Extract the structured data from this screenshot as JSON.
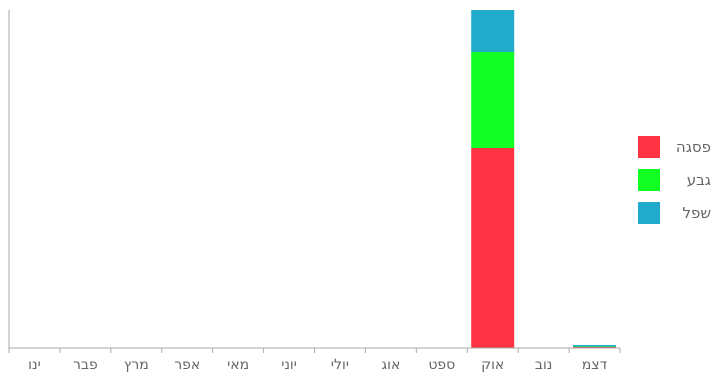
{
  "chart_data": {
    "type": "bar",
    "stacked": true,
    "categories": [
      "ינו",
      "פבר",
      "מרץ",
      "אפר",
      "מאי",
      "יוני",
      "יולי",
      "אוג",
      "ספט",
      "אוק",
      "נוב",
      "דצמ"
    ],
    "series": [
      {
        "name": "פסגה",
        "color": "#ff3344",
        "values": [
          0,
          0,
          0,
          0,
          0,
          0,
          0,
          0,
          0,
          200,
          0,
          1
        ]
      },
      {
        "name": "גבע",
        "color": "#11ff22",
        "values": [
          0,
          0,
          0,
          0,
          0,
          0,
          0,
          0,
          0,
          96,
          0,
          0.5
        ]
      },
      {
        "name": "שפל",
        "color": "#22aacc",
        "values": [
          0,
          0,
          0,
          0,
          0,
          0,
          0,
          0,
          0,
          42,
          0,
          1.5
        ]
      }
    ],
    "ylim": [
      0,
      338
    ],
    "grid": false,
    "legend_position": "right"
  }
}
